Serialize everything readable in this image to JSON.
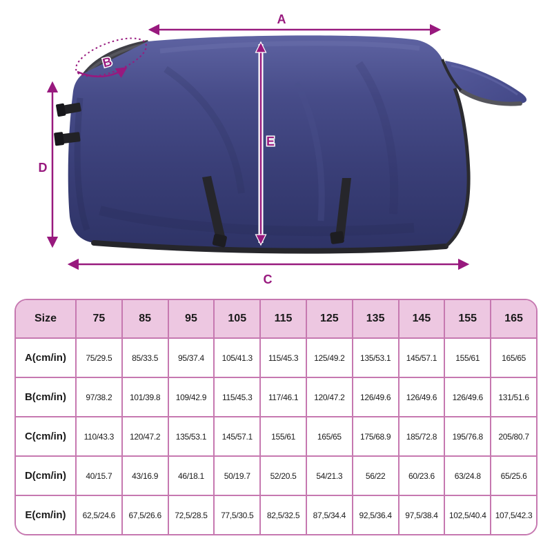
{
  "diagram": {
    "type": "horse-blanket-measurement-diagram",
    "arrow_color": "#98197e",
    "blanket_color": "#3f4480",
    "binding_color": "#26262b",
    "labels": {
      "a": "A",
      "b": "B",
      "c": "C",
      "d": "D",
      "e": "E"
    }
  },
  "table": {
    "colors": {
      "header_bg": "#edc7e1",
      "border": "#c678b0",
      "cell_bg": "#ffffff",
      "text": "#1a1a1a"
    },
    "columns": [
      "Size",
      "75",
      "85",
      "95",
      "105",
      "115",
      "125",
      "135",
      "145",
      "155",
      "165"
    ],
    "rows": [
      {
        "label": "A(cm/in)",
        "values": [
          "75/29.5",
          "85/33.5",
          "95/37.4",
          "105/41.3",
          "115/45.3",
          "125/49.2",
          "135/53.1",
          "145/57.1",
          "155/61",
          "165/65"
        ]
      },
      {
        "label": "B(cm/in)",
        "values": [
          "97/38.2",
          "101/39.8",
          "109/42.9",
          "115/45.3",
          "117/46.1",
          "120/47.2",
          "126/49.6",
          "126/49.6",
          "126/49.6",
          "131/51.6"
        ]
      },
      {
        "label": "C(cm/in)",
        "values": [
          "110/43.3",
          "120/47.2",
          "135/53.1",
          "145/57.1",
          "155/61",
          "165/65",
          "175/68.9",
          "185/72.8",
          "195/76.8",
          "205/80.7"
        ]
      },
      {
        "label": "D(cm/in)",
        "values": [
          "40/15.7",
          "43/16.9",
          "46/18.1",
          "50/19.7",
          "52/20.5",
          "54/21.3",
          "56/22",
          "60/23.6",
          "63/24.8",
          "65/25.6"
        ]
      },
      {
        "label": "E(cm/in)",
        "values": [
          "62,5/24.6",
          "67,5/26.6",
          "72,5/28.5",
          "77,5/30.5",
          "82,5/32.5",
          "87,5/34.4",
          "92,5/36.4",
          "97,5/38.4",
          "102,5/40.4",
          "107,5/42.3"
        ]
      }
    ]
  }
}
